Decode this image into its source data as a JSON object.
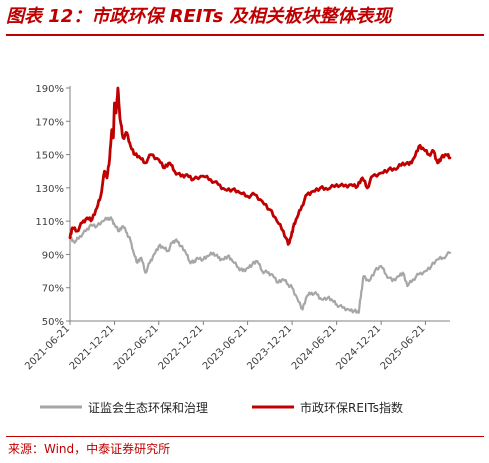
{
  "header": {
    "title": "图表 12：市政环保 REITs 及相关板块整体表现"
  },
  "footer": {
    "source": "来源：Wind，中泰证券研究所"
  },
  "chart_data": {
    "type": "line",
    "title": "",
    "xlabel": "",
    "ylabel": "",
    "ylim": [
      50,
      190
    ],
    "y_ticks": [
      50,
      70,
      90,
      110,
      130,
      150,
      170,
      190
    ],
    "y_tick_labels": [
      "50%",
      "70%",
      "90%",
      "110%",
      "130%",
      "150%",
      "170%",
      "190%"
    ],
    "x_range": [
      "2021-06-21",
      "2025-09-30"
    ],
    "x_ticks": [
      "2021-06-21",
      "2021-12-21",
      "2022-06-21",
      "2022-12-21",
      "2023-06-21",
      "2023-12-21",
      "2024-06-21",
      "2024-12-21",
      "2025-06-21"
    ],
    "grid": false,
    "legend_position": "bottom",
    "series": [
      {
        "name": "证监会生态环保和治理",
        "color": "#a6a6a6",
        "points": [
          [
            "2021-06-21",
            100
          ],
          [
            "2021-07-10",
            97
          ],
          [
            "2021-08-01",
            101
          ],
          [
            "2021-08-25",
            104
          ],
          [
            "2021-09-15",
            108
          ],
          [
            "2021-10-10",
            107
          ],
          [
            "2021-11-05",
            110
          ],
          [
            "2021-11-25",
            112
          ],
          [
            "2021-12-10",
            111
          ],
          [
            "2021-12-21",
            108
          ],
          [
            "2022-01-10",
            104
          ],
          [
            "2022-01-25",
            107
          ],
          [
            "2022-02-10",
            103
          ],
          [
            "2022-02-25",
            98
          ],
          [
            "2022-03-10",
            91
          ],
          [
            "2022-03-25",
            85
          ],
          [
            "2022-04-10",
            88
          ],
          [
            "2022-04-27",
            79
          ],
          [
            "2022-05-15",
            85
          ],
          [
            "2022-06-01",
            90
          ],
          [
            "2022-06-21",
            95
          ],
          [
            "2022-07-10",
            94
          ],
          [
            "2022-07-28",
            92
          ],
          [
            "2022-08-15",
            97
          ],
          [
            "2022-09-01",
            99
          ],
          [
            "2022-09-20",
            95
          ],
          [
            "2022-10-10",
            91
          ],
          [
            "2022-10-25",
            86
          ],
          [
            "2022-11-10",
            85
          ],
          [
            "2022-11-25",
            88
          ],
          [
            "2022-12-21",
            87
          ],
          [
            "2023-01-10",
            89
          ],
          [
            "2023-02-01",
            91
          ],
          [
            "2023-02-20",
            88
          ],
          [
            "2023-03-10",
            87
          ],
          [
            "2023-03-31",
            89
          ],
          [
            "2023-04-20",
            86
          ],
          [
            "2023-05-15",
            82
          ],
          [
            "2023-06-01",
            80
          ],
          [
            "2023-06-21",
            82
          ],
          [
            "2023-07-10",
            84
          ],
          [
            "2023-07-31",
            86
          ],
          [
            "2023-08-20",
            80
          ],
          [
            "2023-09-10",
            79
          ],
          [
            "2023-10-01",
            78
          ],
          [
            "2023-10-25",
            73
          ],
          [
            "2023-11-15",
            75
          ],
          [
            "2023-12-05",
            72
          ],
          [
            "2023-12-21",
            70
          ],
          [
            "2024-01-10",
            64
          ],
          [
            "2024-02-02",
            57
          ],
          [
            "2024-02-20",
            65
          ],
          [
            "2024-03-10",
            67
          ],
          [
            "2024-04-01",
            66
          ],
          [
            "2024-04-20",
            63
          ],
          [
            "2024-05-15",
            64
          ],
          [
            "2024-06-05",
            62
          ],
          [
            "2024-06-21",
            60
          ],
          [
            "2024-07-15",
            58
          ],
          [
            "2024-08-10",
            57
          ],
          [
            "2024-09-01",
            56
          ],
          [
            "2024-09-20",
            55
          ],
          [
            "2024-10-01",
            68
          ],
          [
            "2024-10-10",
            77
          ],
          [
            "2024-11-01",
            74
          ],
          [
            "2024-11-25",
            80
          ],
          [
            "2024-12-21",
            83
          ],
          [
            "2025-01-10",
            78
          ],
          [
            "2025-02-05",
            74
          ],
          [
            "2025-03-01",
            77
          ],
          [
            "2025-03-20",
            79
          ],
          [
            "2025-04-08",
            71
          ],
          [
            "2025-05-01",
            75
          ],
          [
            "2025-05-25",
            78
          ],
          [
            "2025-06-21",
            80
          ],
          [
            "2025-07-15",
            83
          ],
          [
            "2025-08-10",
            87
          ],
          [
            "2025-09-01",
            88
          ],
          [
            "2025-09-30",
            91
          ]
        ]
      },
      {
        "name": "市政环保REITs指数",
        "color": "#c00000",
        "points": [
          [
            "2021-06-21",
            100
          ],
          [
            "2021-07-01",
            106
          ],
          [
            "2021-07-20",
            104
          ],
          [
            "2021-08-10",
            109
          ],
          [
            "2021-08-30",
            112
          ],
          [
            "2021-09-20",
            111
          ],
          [
            "2021-10-10",
            118
          ],
          [
            "2021-10-25",
            125
          ],
          [
            "2021-11-10",
            140
          ],
          [
            "2021-11-20",
            136
          ],
          [
            "2021-12-01",
            148
          ],
          [
            "2021-12-10",
            165
          ],
          [
            "2021-12-16",
            160
          ],
          [
            "2021-12-21",
            181
          ],
          [
            "2021-12-27",
            175
          ],
          [
            "2022-01-04",
            190
          ],
          [
            "2022-01-12",
            172
          ],
          [
            "2022-01-25",
            160
          ],
          [
            "2022-02-10",
            163
          ],
          [
            "2022-02-25",
            155
          ],
          [
            "2022-03-15",
            150
          ],
          [
            "2022-04-05",
            148
          ],
          [
            "2022-04-25",
            145
          ],
          [
            "2022-05-20",
            150
          ],
          [
            "2022-06-21",
            147
          ],
          [
            "2022-07-15",
            142
          ],
          [
            "2022-08-05",
            145
          ],
          [
            "2022-08-25",
            140
          ],
          [
            "2022-09-20",
            137
          ],
          [
            "2022-10-15",
            138
          ],
          [
            "2022-11-10",
            135
          ],
          [
            "2022-12-21",
            137
          ],
          [
            "2023-01-20",
            135
          ],
          [
            "2023-02-20",
            132
          ],
          [
            "2023-03-20",
            129
          ],
          [
            "2023-04-20",
            129
          ],
          [
            "2023-05-20",
            127
          ],
          [
            "2023-06-21",
            125
          ],
          [
            "2023-07-20",
            126
          ],
          [
            "2023-08-20",
            122
          ],
          [
            "2023-09-20",
            117
          ],
          [
            "2023-10-20",
            110
          ],
          [
            "2023-11-15",
            104
          ],
          [
            "2023-12-05",
            96
          ],
          [
            "2023-12-15",
            100
          ],
          [
            "2023-12-25",
            106
          ],
          [
            "2024-01-10",
            112
          ],
          [
            "2024-01-30",
            119
          ],
          [
            "2024-02-20",
            126
          ],
          [
            "2024-03-15",
            128
          ],
          [
            "2024-04-15",
            130
          ],
          [
            "2024-05-15",
            129
          ],
          [
            "2024-06-21",
            132
          ],
          [
            "2024-07-20",
            131
          ],
          [
            "2024-08-20",
            132
          ],
          [
            "2024-09-15",
            131
          ],
          [
            "2024-10-05",
            136
          ],
          [
            "2024-10-25",
            130
          ],
          [
            "2024-11-15",
            137
          ],
          [
            "2024-12-21",
            139
          ],
          [
            "2025-01-20",
            141
          ],
          [
            "2025-02-20",
            141
          ],
          [
            "2025-03-20",
            145
          ],
          [
            "2025-04-15",
            144
          ],
          [
            "2025-05-05",
            148
          ],
          [
            "2025-05-25",
            155
          ],
          [
            "2025-06-15",
            153
          ],
          [
            "2025-07-05",
            150
          ],
          [
            "2025-07-25",
            152
          ],
          [
            "2025-08-10",
            145
          ],
          [
            "2025-08-25",
            148
          ],
          [
            "2025-09-15",
            150
          ],
          [
            "2025-09-30",
            148
          ]
        ]
      }
    ]
  }
}
